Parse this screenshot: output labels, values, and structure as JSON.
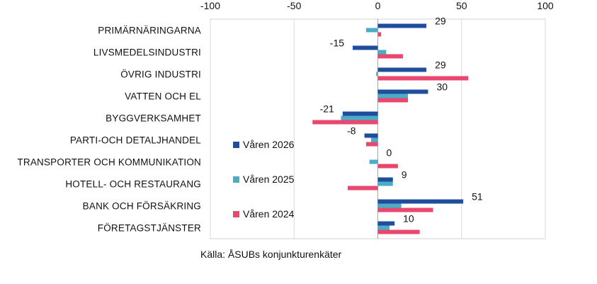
{
  "chart_data": {
    "type": "bar",
    "orientation": "horizontal",
    "title": "",
    "xlabel": "",
    "ylabel": "",
    "xlim": [
      -100,
      100
    ],
    "xticks": [
      -100,
      -50,
      0,
      50,
      100
    ],
    "grid": true,
    "legend_position": "left-inside",
    "categories": [
      "PRIMÄRNÄRINGARNA",
      "LIVSMEDELSINDUSTRI",
      "ÖVRIG INDUSTRI",
      "VATTEN OCH EL",
      "BYGGVERKSAMHET",
      "PARTI-OCH DETALJHANDEL",
      "TRANSPORTER OCH KOMMUNIKATION",
      "HOTELL- OCH RESTAURANG",
      "BANK OCH FÖRSÄKRING",
      "FÖRETAGSTJÄNSTER"
    ],
    "series": [
      {
        "name": "Våren 2026",
        "color": "#1f4e9f",
        "values": [
          29,
          -15,
          29,
          30,
          -21,
          -8,
          0,
          9,
          51,
          10
        ],
        "labels": [
          "29",
          "-15",
          "29",
          "30",
          "-21",
          "-8",
          "0",
          "9",
          "51",
          "10"
        ]
      },
      {
        "name": "Våren 2025",
        "color": "#4bacc6",
        "values": [
          -7,
          5,
          -1,
          18,
          -22,
          -4,
          -5,
          9,
          14,
          7
        ]
      },
      {
        "name": "Våren 2024",
        "color": "#e8486e",
        "values": [
          2,
          15,
          54,
          18,
          -39,
          -7,
          12,
          -18,
          33,
          25
        ]
      }
    ]
  },
  "source_text": "Källa: ÅSUBs konjunkturenkäter"
}
